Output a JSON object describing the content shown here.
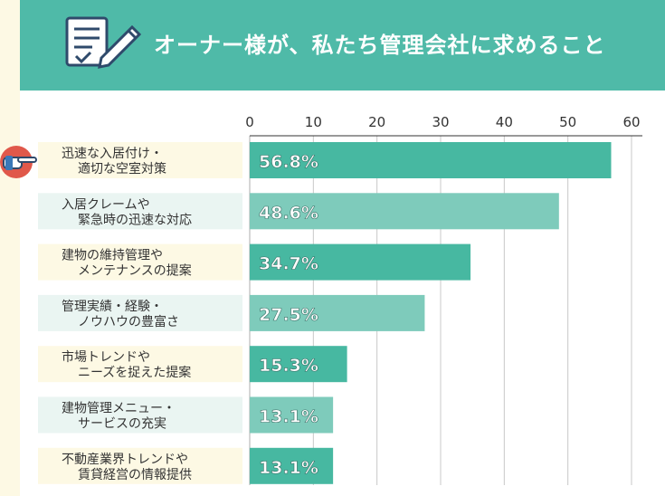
{
  "header": {
    "title": "オーナー様が、私たち管理会社に求めること",
    "icon": "checklist-pen-icon"
  },
  "pointer_icon": "pointing-hand-icon",
  "colors": {
    "banner": "#4fbaa8",
    "bar_dark": "#47b8a1",
    "bar_light": "#7ecbbb",
    "label_bg_a": "#fdf9e4",
    "label_bg_b": "#eaf5f2",
    "grid": "#c8c8c8",
    "text": "#333333"
  },
  "chart_data": {
    "type": "bar",
    "orientation": "horizontal",
    "categories": [
      [
        "迅速な入居付け・",
        "適切な空室対策"
      ],
      [
        "入居クレームや",
        "緊急時の迅速な対応"
      ],
      [
        "建物の維持管理や",
        "メンテナンスの提案"
      ],
      [
        "管理実績・経験・",
        "ノウハウの豊富さ"
      ],
      [
        "市場トレンドや",
        "ニーズを捉えた提案"
      ],
      [
        "建物管理メニュー・",
        "サービスの充実"
      ],
      [
        "不動産業界トレンドや",
        "賃貸経営の情報提供"
      ]
    ],
    "values": [
      56.8,
      48.6,
      34.7,
      27.5,
      15.3,
      13.1,
      13.1
    ],
    "data_labels": [
      "56.8%",
      "48.6%",
      "34.7%",
      "27.5%",
      "15.3%",
      "13.1%",
      "13.1%"
    ],
    "xlim": [
      0,
      60
    ],
    "ticks": [
      0,
      10,
      20,
      30,
      40,
      50,
      60
    ],
    "tick_labels": [
      "0",
      "10",
      "20",
      "30",
      "40",
      "50",
      "60"
    ],
    "grid": true,
    "axis_position": "top"
  }
}
